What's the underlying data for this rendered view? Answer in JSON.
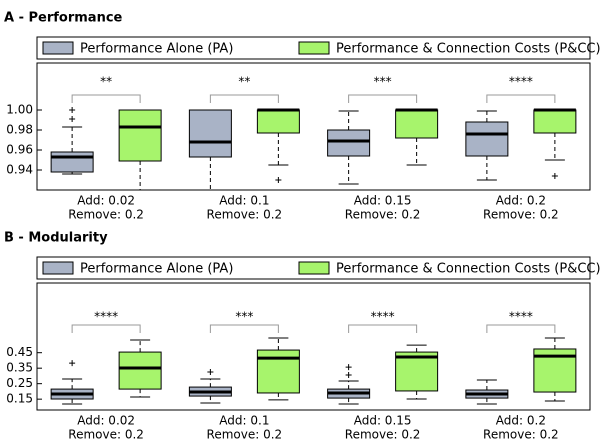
{
  "chart_data": [
    {
      "type": "box",
      "title": "A - Performance",
      "categories": [
        [
          "Add: 0.02",
          "Remove: 0.2"
        ],
        [
          "Add: 0.1",
          "Remove: 0.2"
        ],
        [
          "Add: 0.15",
          "Remove: 0.2"
        ],
        [
          "Add: 0.2",
          "Remove: 0.2"
        ]
      ],
      "ylim": [
        0.92,
        1.047
      ],
      "yticks": [
        0.94,
        0.96,
        0.98,
        {
          "value": 1.0,
          "label": "1.00"
        }
      ],
      "significance": [
        "**",
        "**",
        "***",
        "****"
      ],
      "series": [
        {
          "name": "Performance Alone (PA)",
          "color": "#a9b3c6",
          "values": [
            {
              "low": 0.936,
              "q1": 0.938,
              "median": 0.953,
              "q3": 0.958,
              "high": 0.983,
              "outliers": [
                0.991,
                1.0
              ]
            },
            {
              "low": 0.92,
              "q1": 0.953,
              "median": 0.968,
              "q3": 1.0,
              "high": 1.0,
              "outliers": []
            },
            {
              "low": 0.926,
              "q1": 0.954,
              "median": 0.969,
              "q3": 0.98,
              "high": 0.999,
              "outliers": []
            },
            {
              "low": 0.93,
              "q1": 0.954,
              "median": 0.976,
              "q3": 0.988,
              "high": 0.999,
              "outliers": []
            }
          ]
        },
        {
          "name": "Performance & Connection Costs (P&CC)",
          "color": "#a7f46c",
          "values": [
            {
              "low": 0.92,
              "q1": 0.949,
              "median": 0.983,
              "q3": 1.0,
              "high": 1.0,
              "outliers": []
            },
            {
              "low": 0.945,
              "q1": 0.977,
              "median": 1.0,
              "q3": 1.0,
              "high": 1.0,
              "outliers": [
                0.93
              ]
            },
            {
              "low": 0.945,
              "q1": 0.972,
              "median": 1.0,
              "q3": 1.0,
              "high": 1.0,
              "outliers": []
            },
            {
              "low": 0.95,
              "q1": 0.977,
              "median": 1.0,
              "q3": 1.0,
              "high": 1.0,
              "outliers": [
                0.934
              ]
            }
          ]
        }
      ]
    },
    {
      "type": "box",
      "title": "B - Modularity",
      "categories": [
        [
          "Add: 0.02",
          "Remove: 0.2"
        ],
        [
          "Add: 0.1",
          "Remove: 0.2"
        ],
        [
          "Add: 0.15",
          "Remove: 0.2"
        ],
        [
          "Add: 0.2",
          "Remove: 0.2"
        ]
      ],
      "ylim": [
        0.08,
        0.9
      ],
      "yticks": [
        0.15,
        0.25,
        0.35,
        0.45
      ],
      "significance": [
        "****",
        "***",
        "****",
        "****"
      ],
      "series": [
        {
          "name": "Performance Alone (PA)",
          "color": "#a9b3c6",
          "values": [
            {
              "low": 0.119,
              "q1": 0.151,
              "median": 0.183,
              "q3": 0.215,
              "high": 0.28,
              "outliers": [
                0.383
              ]
            },
            {
              "low": 0.125,
              "q1": 0.17,
              "median": 0.196,
              "q3": 0.228,
              "high": 0.28,
              "outliers": [
                0.325
              ]
            },
            {
              "low": 0.119,
              "q1": 0.157,
              "median": 0.19,
              "q3": 0.215,
              "high": 0.267,
              "outliers": [
                0.306,
                0.357
              ]
            },
            {
              "low": 0.119,
              "q1": 0.157,
              "median": 0.183,
              "q3": 0.209,
              "high": 0.274,
              "outliers": []
            }
          ]
        },
        {
          "name": "Performance & Connection Costs (P&CC)",
          "color": "#a7f46c",
          "values": [
            {
              "low": 0.164,
              "q1": 0.215,
              "median": 0.351,
              "q3": 0.454,
              "high": 0.532,
              "outliers": []
            },
            {
              "low": 0.145,
              "q1": 0.19,
              "median": 0.415,
              "q3": 0.467,
              "high": 0.545,
              "outliers": []
            },
            {
              "low": 0.151,
              "q1": 0.203,
              "median": 0.422,
              "q3": 0.454,
              "high": 0.499,
              "outliers": []
            },
            {
              "low": 0.138,
              "q1": 0.196,
              "median": 0.428,
              "q3": 0.474,
              "high": 0.545,
              "outliers": []
            }
          ]
        }
      ]
    }
  ]
}
